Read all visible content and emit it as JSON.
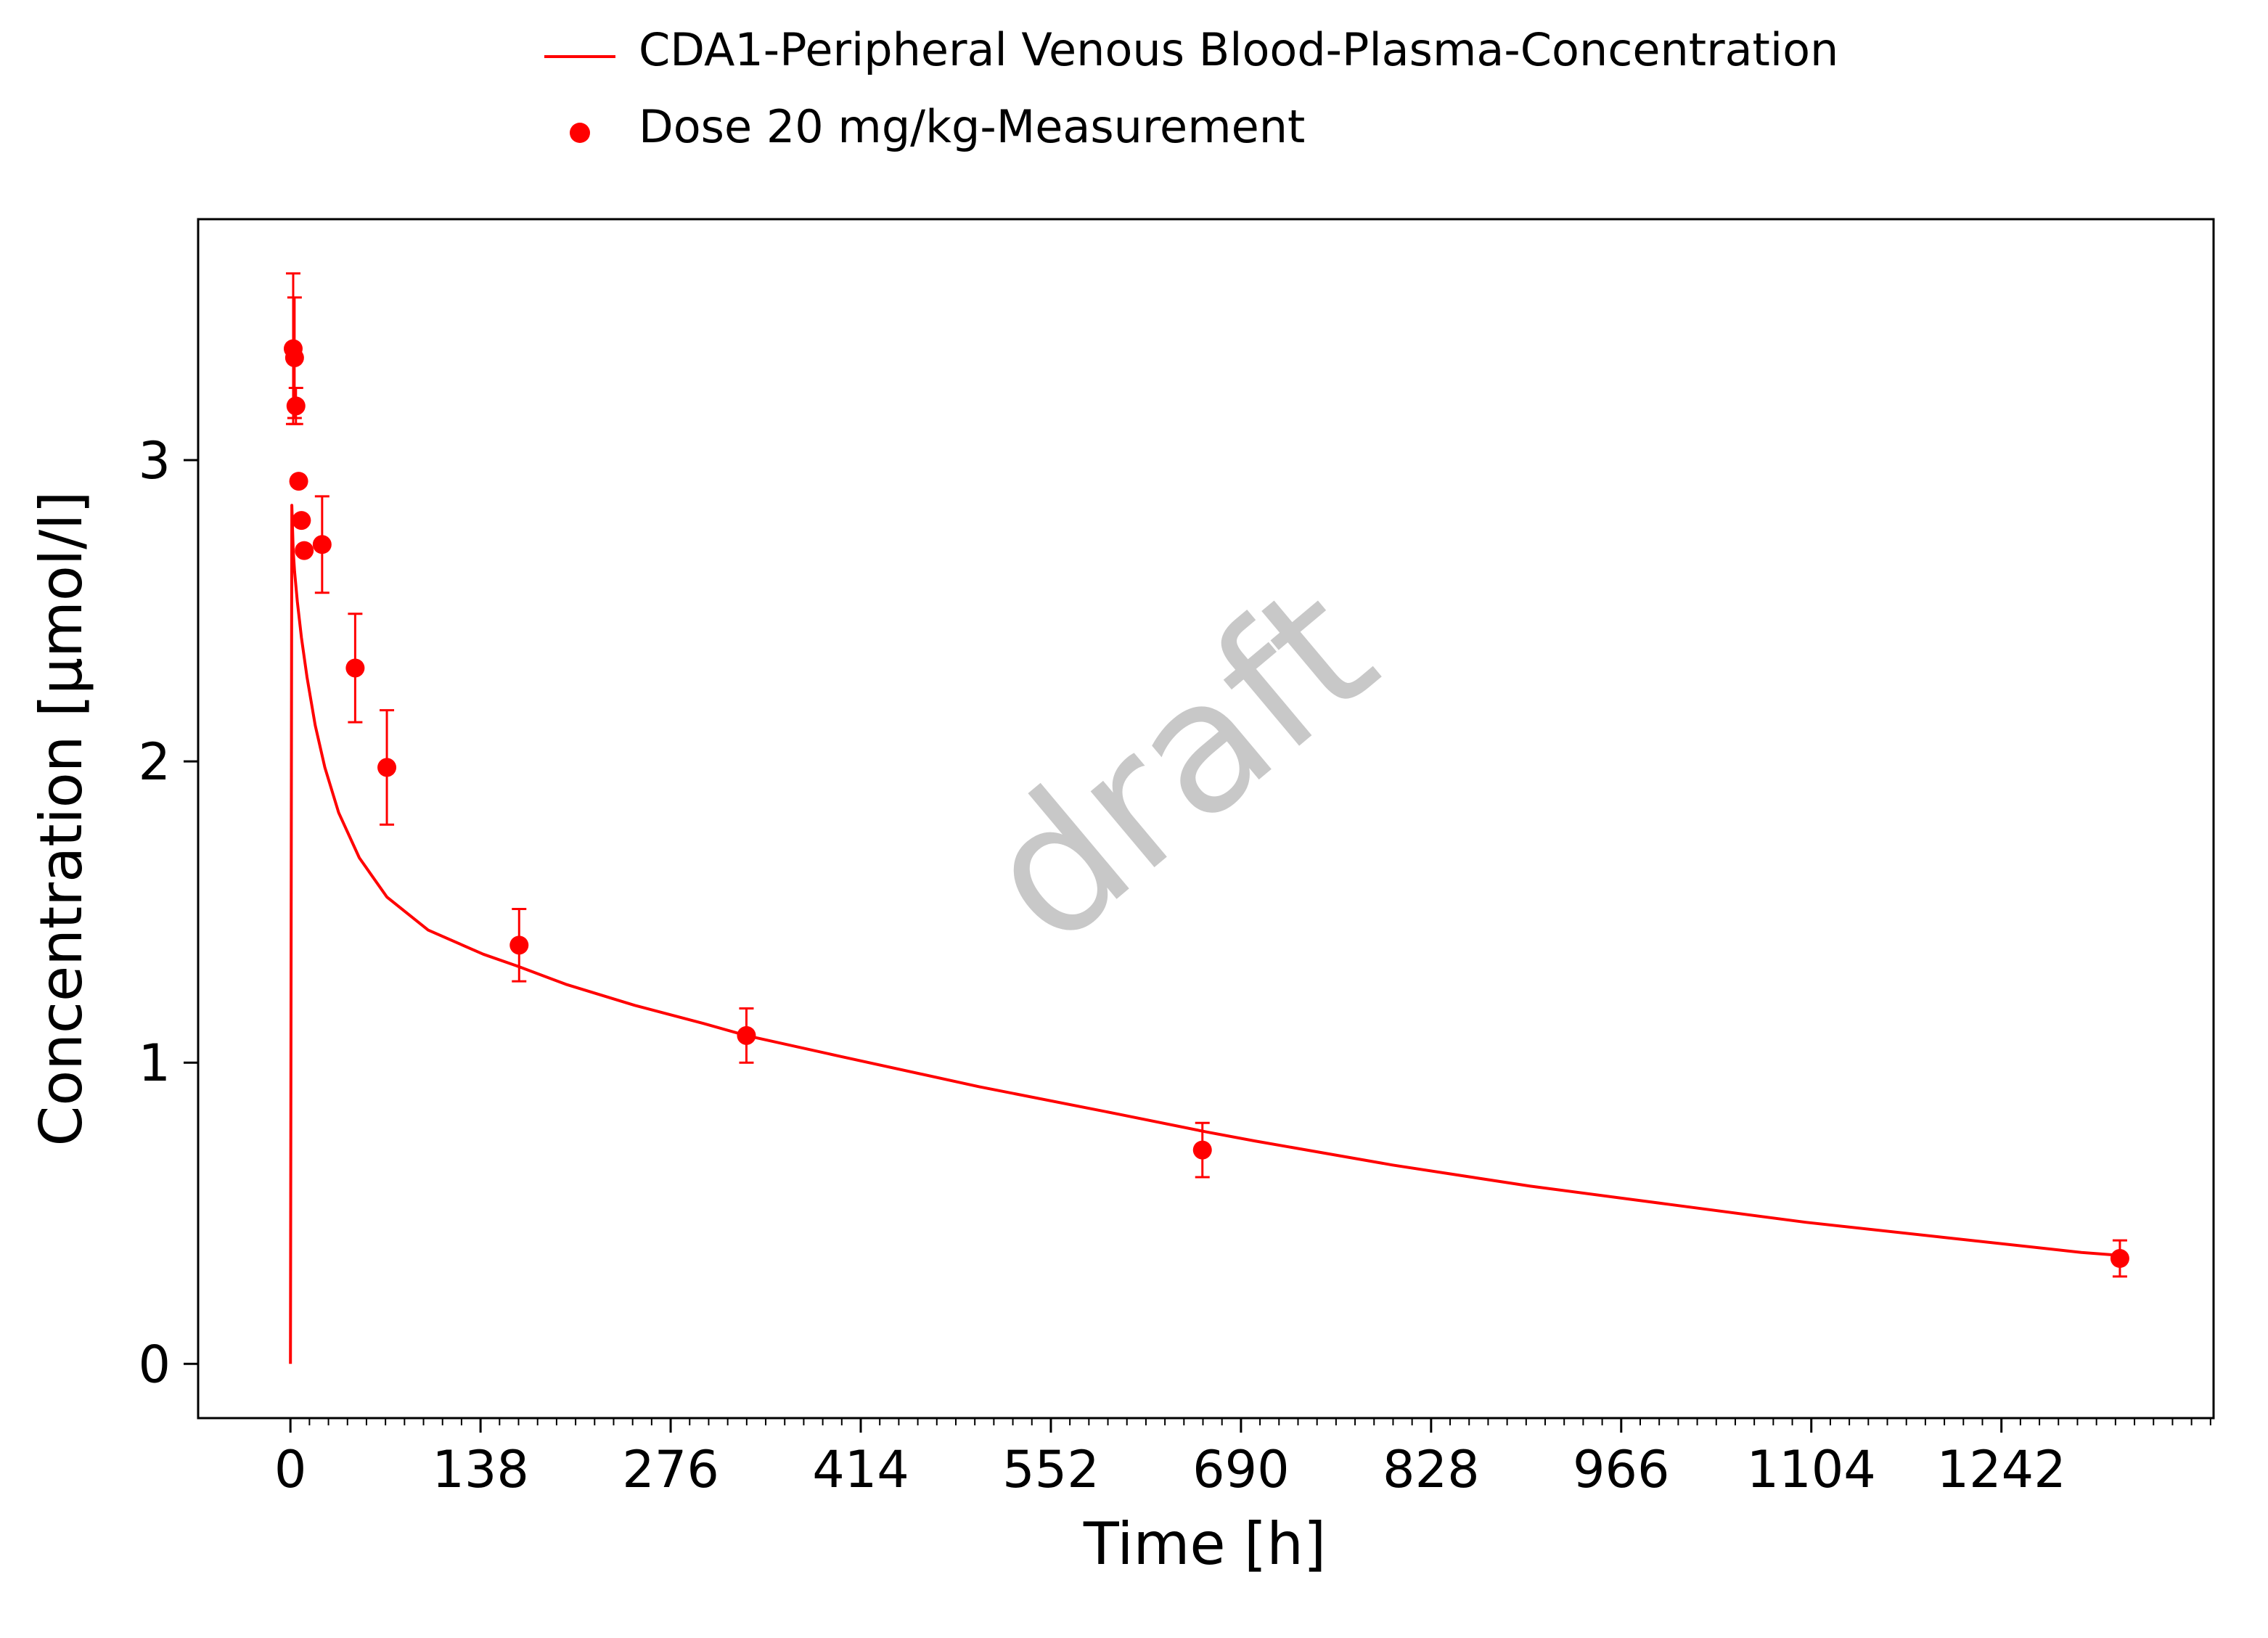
{
  "chart_data": {
    "type": "line",
    "title": "",
    "xlabel": "Time [h]",
    "ylabel": "Concentration [µmol/l]",
    "xlim": [
      -67,
      1396
    ],
    "ylim": [
      -0.18,
      3.8
    ],
    "x_ticks": [
      0,
      138,
      276,
      414,
      552,
      690,
      828,
      966,
      1104,
      1242
    ],
    "x_tick_labels": [
      "0",
      "138",
      "276",
      "414",
      "552",
      "690",
      "828",
      "966",
      "1104",
      "1242"
    ],
    "x_minor_step": 13.8,
    "y_ticks": [
      0,
      1,
      2,
      3
    ],
    "y_tick_labels": [
      "0",
      "1",
      "2",
      "3"
    ],
    "grid": false,
    "legend_position": "top-center",
    "watermark": "draft",
    "series": [
      {
        "name": "CDA1-Peripheral Venous Blood-Plasma-Concentration",
        "type": "line",
        "color": "#ff0000",
        "x": [
          0,
          1,
          2,
          3,
          5,
          8,
          12,
          18,
          25,
          35,
          50,
          70,
          100,
          140,
          165,
          200,
          250,
          300,
          331,
          400,
          500,
          600,
          665,
          700,
          800,
          900,
          1000,
          1100,
          1200,
          1300,
          1329
        ],
        "y": [
          0,
          2.85,
          2.7,
          2.63,
          2.53,
          2.41,
          2.28,
          2.12,
          1.98,
          1.83,
          1.68,
          1.55,
          1.44,
          1.36,
          1.32,
          1.26,
          1.19,
          1.13,
          1.09,
          1.02,
          0.92,
          0.83,
          0.77,
          0.74,
          0.66,
          0.59,
          0.53,
          0.47,
          0.42,
          0.37,
          0.36
        ]
      },
      {
        "name": "Dose 20 mg/kg-Measurement",
        "type": "scatter",
        "color": "#ff0000",
        "x": [
          2,
          3,
          4,
          6,
          8,
          10,
          23,
          47,
          70,
          166,
          331,
          662,
          1328
        ],
        "y": [
          3.37,
          3.34,
          3.18,
          2.93,
          2.8,
          2.7,
          2.72,
          2.31,
          1.98,
          1.39,
          1.09,
          0.71,
          0.35
        ],
        "err": [
          0.25,
          0.2,
          0.06,
          0.0,
          0.0,
          0.0,
          0.16,
          0.18,
          0.19,
          0.12,
          0.09,
          0.09,
          0.06
        ]
      }
    ]
  }
}
